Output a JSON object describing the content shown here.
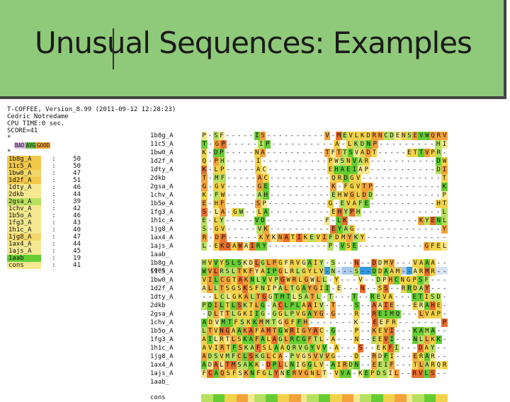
{
  "slide": {
    "title": "Unusual Sequences: Examples"
  },
  "header": {
    "lines": [
      "T-COFFEE, Version_8.99 (2011-09-12 12:28:23)",
      "Cedric Notredame",
      "CPU TIME:0 sec.",
      "SCORE=41",
      "*"
    ]
  },
  "legend": {
    "items": [
      {
        "label": "BAD",
        "color": "#d8b4e0"
      },
      {
        "label": "AVG",
        "color": "#66bb44"
      },
      {
        "label": "GOOD",
        "color": "#f2a33a"
      }
    ]
  },
  "scores": [
    {
      "name": "1b8g_A",
      "value": "50",
      "color": "#f2c84a"
    },
    {
      "name": "11c5_A",
      "value": "50",
      "color": "#f2c84a"
    },
    {
      "name": "1bw0_A",
      "value": "47",
      "color": "#f2d86a"
    },
    {
      "name": "1d2f_A",
      "value": "51",
      "color": "#f2c84a"
    },
    {
      "name": "1dty_A",
      "value": "46",
      "color": "#f6e890"
    },
    {
      "name": "2dkb",
      "value": "44",
      "color": "#f6e890"
    },
    {
      "name": "2gsa_A",
      "value": "39",
      "color": "#b8e060"
    },
    {
      "name": "1chv_A",
      "value": "42",
      "color": "#f6e890"
    },
    {
      "name": "1b5o_A",
      "value": "46",
      "color": "#f6e890"
    },
    {
      "name": "1fg3_A",
      "value": "43",
      "color": "#f6e890"
    },
    {
      "name": "1h1c_A",
      "value": "40",
      "color": "#f6e890"
    },
    {
      "name": "1jg8_A",
      "value": "47",
      "color": "#f2d86a"
    },
    {
      "name": "1ax4_A",
      "value": "44",
      "color": "#f6e890"
    },
    {
      "name": "1ajs_A",
      "value": "45",
      "color": "#f6e890"
    },
    {
      "name": "1aab",
      "value": "19",
      "color": "#66cc33"
    },
    {
      "name": "cons",
      "value": "41",
      "color": "#f6e890"
    }
  ],
  "block1": {
    "rows": [
      {
        "name": "1b8g_A",
        "seq": "P-SF-----IS----------V-MEVLKDRNCDENSEVWQRV"
      },
      {
        "name": "11c5_A",
        "seq": "T-GP-----IP----------A-LKDNP---------HI"
      },
      {
        "name": "1bw0_A",
        "seq": "K-DP-----NA----------TFTTSVADT-----ETTVPR-"
      },
      {
        "name": "1d2f_A",
        "seq": "Q-PH-----I-----------PWSNVAR-----------DW"
      },
      {
        "name": "1dty_A",
        "seq": "K-LP-----AC----------EHAEIAP-----------DI"
      },
      {
        "name": "2dkb",
        "seq": "T-MF-----AC----------QRDGV-------------T"
      },
      {
        "name": "2gsa_A",
        "seq": "G-GV-----GE----------K-FGVTP-----------K"
      },
      {
        "name": "1chv_A",
        "seq": "K-FW-----AH----------EHWGLDD-----------P"
      },
      {
        "name": "1b5o_A",
        "seq": "E-HF-----SP----------G-EVAFE-----------HT"
      },
      {
        "name": "1fg3_A",
        "seq": "S-LA-GW--LA----------EHYPH-------------L"
      },
      {
        "name": "1h1c_A",
        "seq": "E-LY-----VD----------F-LK------------KYENL"
      },
      {
        "name": "1jg8_A",
        "seq": "S-GV-----VK----------EYAG--------------Y"
      },
      {
        "name": "1ax4_A",
        "seq": "R-DP-----KYKNATIKEVIFDMYKY-------------"
      },
      {
        "name": "1ajs_A",
        "seq": "L-EKDAWAIRY----------P-VSE-----------GFEL"
      },
      {
        "name": "1aab_",
        "seq": ""
      }
    ],
    "cons_label": "cons"
  },
  "block2": {
    "rows": [
      {
        "name": "1b8g_A",
        "seq": "HVVYSLSKDLGLPGFRVGAIY-S---N--DDMV---VAAA--"
      },
      {
        "name": "11c5_A",
        "seq": "WVLRSLTKFYAIPGLRLGYLV-N---S--DDAAM--ARMR--"
      },
      {
        "name": "1bw0_A",
        "seq": "VILCGTAKNLVVPGWRLGWLL-Y---V--DPHCNGPSF---"
      },
      {
        "name": "1d2f_A",
        "seq": "ALLTSGSKSFNIPALTGAYGII-E---N--SS--RRDAY---"
      },
      {
        "name": "1dty_A",
        "seq": "--LCLGKALTGGTMTLSATL-T---T--REVA---ETISD-"
      },
      {
        "name": "2dkb",
        "seq": "PDILTLSKTLG-ACLPLAAIV-T---S--AAIE---ERAHE-"
      },
      {
        "name": "2gsa_A",
        "seq": "-DLTTLGKIIG-GGLPVGAYG-G---R--REIMQ---LVAP-"
      },
      {
        "name": "1chv_A",
        "seq": "ADVMTFSKKMMTGGFFH-------K--EEFR-------P"
      },
      {
        "name": "1b5o_A",
        "seq": "LTVNGAAKAFAMTGWRIGYAC-G---P--KEVI---KAMA--"
      },
      {
        "name": "1fg3_A",
        "seq": "AILRTLSKAFALAGLRCGFTL-A---N--EEVI---NLLKK-"
      },
      {
        "name": "1h1c_A",
        "seq": "AVIRTFSKAFSLAAQRVGYVV-A---S--EKFI---DAY--"
      },
      {
        "name": "1jg8_A",
        "seq": "ADSVMFCLSKGLCA-PVGSVVVG---D--RDFI---ERAR--"
      },
      {
        "name": "1ax4_A",
        "seq": "ADALTMSAKK-DPLLNIGGLV-AIRDN--EEIF---TLARQR"
      },
      {
        "name": "1ajs_A",
        "seq": "FCAQSFSKNFGLYNERVGNLT-VVA-KEPDSIL--RVLS--"
      },
      {
        "name": "1aab_",
        "seq": ""
      }
    ],
    "cons_label": "cons"
  },
  "colors": {
    "title_bg": "#8fc97a",
    "seq_palette": [
      "#f2d24a",
      "#f2a33a",
      "#e8702e",
      "#66cc33",
      "#b8e060",
      "#f6e890",
      "#3399dd"
    ]
  }
}
